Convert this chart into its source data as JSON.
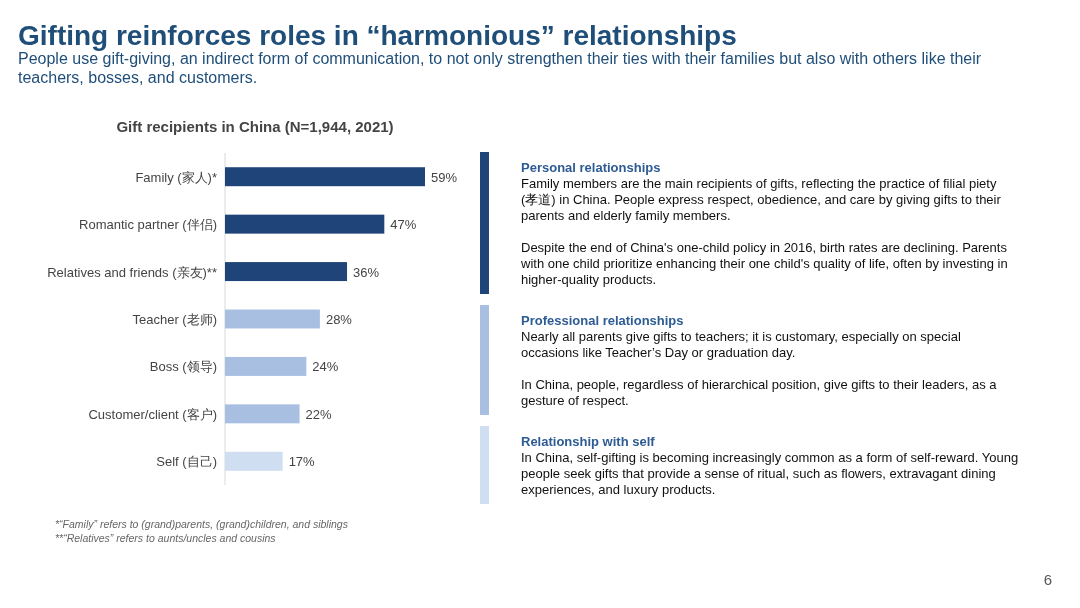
{
  "chart_data": [
    {
      "type": "other",
      "title": "Gifting reinforces roles in “harmonious” relationships",
      "subtitle": "People use gift-giving, an indirect form of communication, to not only strengthen their ties with their families but also with others like their teachers, bosses, and customers.",
      "annotations": [
        "6"
      ]
    },
    {
      "type": "bar",
      "orientation": "horizontal",
      "title": "Gift recipients in China (N=1,944, 2021)",
      "categories": [
        "Family (家人)*",
        "Romantic partner (伴侣)",
        "Relatives and friends (亲友)**",
        "Teacher (老师)",
        "Boss (领导)",
        "Customer/client (客户)",
        "Self (自己)"
      ],
      "values": [
        59,
        47,
        36,
        28,
        24,
        22,
        17
      ],
      "colors": [
        "#1f447a",
        "#1f447a",
        "#1f447a",
        "#a9bfe2",
        "#a9bfe2",
        "#a9bfe2",
        "#cfdef0"
      ],
      "value_labels": [
        "59%",
        "47%",
        "36%",
        "28%",
        "24%",
        "22%",
        "17%"
      ],
      "annotations": [
        "*“Family” refers to (grand)parents, (grand)children, and siblings",
        "**“Relatives” refers to aunts/uncles and cousins"
      ]
    },
    {
      "type": "other",
      "annotations": [
        "Personal relationships",
        "Family members are the main recipients of gifts, reflecting the practice of filial piety (孝道) in China. People express respect, obedience, and care by giving gifts to their parents and elderly family members.",
        "Despite the end of China's one-child policy in 2016, birth rates are declining. Parents with one child prioritize enhancing their one child's quality of life, often by investing in higher-quality products.",
        "Professional relationships",
        "Nearly all parents give gifts to teachers; it is customary, especially on special occasions like Teacher’s Day or graduation day.",
        "In China, people, regardless of hierarchical position, give gifts to their leaders, as a gesture of respect.",
        "Relationship with self",
        "In China, self-gifting is becoming increasingly common as a form of self-reward. Young people seek gifts that provide a sense of ritual, such as flowers, extravagant dining experiences, and luxury products."
      ]
    }
  ]
}
